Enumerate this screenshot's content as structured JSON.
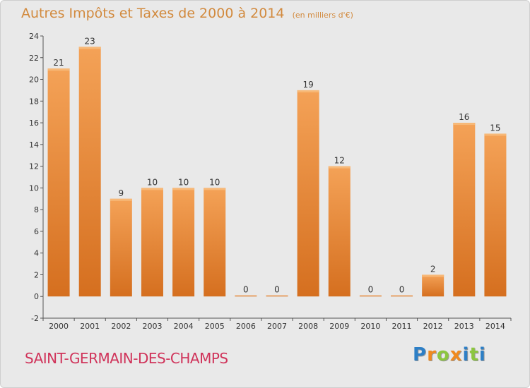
{
  "chart_data": {
    "type": "bar",
    "title": "Autres Impôts et Taxes de 2000 à 2014",
    "unit": "(en milliers d'€)",
    "categories": [
      "2000",
      "2001",
      "2002",
      "2003",
      "2004",
      "2005",
      "2006",
      "2007",
      "2008",
      "2009",
      "2010",
      "2011",
      "2012",
      "2013",
      "2014"
    ],
    "values": [
      21,
      23,
      9,
      10,
      10,
      10,
      0,
      0,
      19,
      12,
      0,
      0,
      2,
      16,
      15
    ],
    "ylim": [
      -2,
      24
    ],
    "yticks": [
      -2,
      0,
      2,
      4,
      6,
      8,
      10,
      12,
      14,
      16,
      18,
      20,
      22,
      24
    ],
    "grid": false,
    "bar_color": "#e8812c",
    "bar_highlight": "#f6a95c"
  },
  "commune": "SAINT-GERMAIN-DES-CHAMPS",
  "logo": {
    "letters": [
      "P",
      "r",
      "o",
      "x",
      "i",
      "t",
      "i"
    ],
    "colors": [
      "#2d7fc6",
      "#f08a1f",
      "#8cc63f",
      "#f08a1f",
      "#2d7fc6",
      "#8cc63f",
      "#2d7fc6"
    ]
  }
}
